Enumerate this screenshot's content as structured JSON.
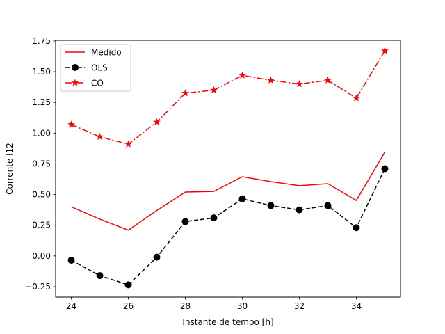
{
  "chart_data": {
    "type": "line",
    "title": "",
    "xlabel": "Instante de tempo [h]",
    "ylabel": "Corrente I12",
    "xlim": [
      23.45,
      35.55
    ],
    "ylim": [
      -0.335,
      1.755
    ],
    "xticks": [
      24,
      26,
      28,
      30,
      32,
      34
    ],
    "xtick_labels": [
      "24",
      "26",
      "28",
      "30",
      "32",
      "34"
    ],
    "yticks": [
      -0.25,
      0.0,
      0.25,
      0.5,
      0.75,
      1.0,
      1.25,
      1.5,
      1.75
    ],
    "ytick_labels": [
      "−0.25",
      "0.00",
      "0.25",
      "0.50",
      "0.75",
      "1.00",
      "1.25",
      "1.50",
      "1.75"
    ],
    "grid": false,
    "legend_position": "top-left",
    "x": [
      24,
      25,
      26,
      27,
      28,
      29,
      30,
      31,
      32,
      33,
      34,
      35
    ],
    "series": [
      {
        "name": "Medido",
        "color": "#ff0000",
        "line_style": "solid",
        "marker": "none",
        "values": [
          0.4,
          0.3,
          0.21,
          0.37,
          0.52,
          0.525,
          0.645,
          0.605,
          0.572,
          0.588,
          0.452,
          0.845
        ]
      },
      {
        "name": "OLS",
        "color": "#000000",
        "line_style": "dashed",
        "marker": "circle",
        "values": [
          -0.035,
          -0.16,
          -0.235,
          -0.01,
          0.28,
          0.31,
          0.465,
          0.41,
          0.375,
          0.41,
          0.23,
          0.71
        ]
      },
      {
        "name": "CO",
        "color": "#ff0000",
        "line_style": "dashdot",
        "marker": "star",
        "values": [
          1.07,
          0.97,
          0.91,
          1.09,
          1.325,
          1.35,
          1.47,
          1.43,
          1.4,
          1.43,
          1.285,
          1.67
        ]
      }
    ]
  }
}
